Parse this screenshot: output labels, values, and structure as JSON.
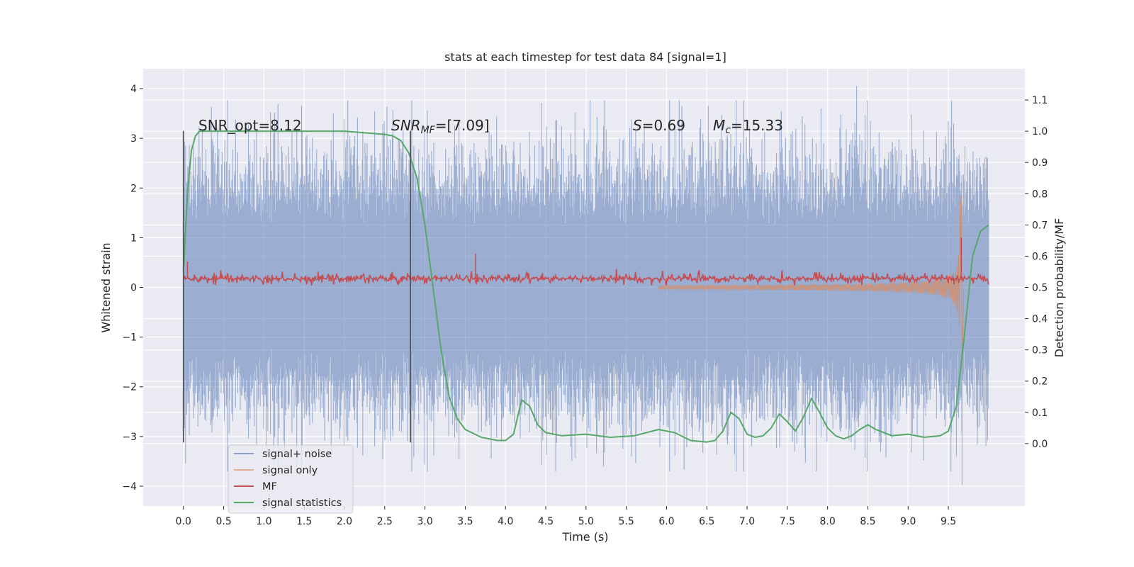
{
  "chart_data": {
    "type": "line",
    "title": "stats at each timestep for test data 84 [signal=1]",
    "xlabel": "Time (s)",
    "ylabel_left": "Whitened strain",
    "ylabel_right": "Detection probability/MF",
    "xlim": [
      -0.5,
      10.45
    ],
    "ylim_left": [
      -4.4,
      4.4
    ],
    "ylim_right": [
      -0.2,
      1.2
    ],
    "xticks": [
      0.0,
      0.5,
      1.0,
      1.5,
      2.0,
      2.5,
      3.0,
      3.5,
      4.0,
      4.5,
      5.0,
      5.5,
      6.0,
      6.5,
      7.0,
      7.5,
      8.0,
      8.5,
      9.0,
      9.5
    ],
    "xtick_labels": [
      "0.0",
      "0.5",
      "1.0",
      "1.5",
      "2.0",
      "2.5",
      "3.0",
      "3.5",
      "4.0",
      "4.5",
      "5.0",
      "5.5",
      "6.0",
      "6.5",
      "7.0",
      "7.5",
      "8.0",
      "8.5",
      "9.0",
      "9.5"
    ],
    "yticks_left": [
      -4,
      -3,
      -2,
      -1,
      0,
      1,
      2,
      3,
      4
    ],
    "yticks_left_labels": [
      "−4",
      "−3",
      "−2",
      "−1",
      "0",
      "1",
      "2",
      "3",
      "4"
    ],
    "yticks_right": [
      0.0,
      0.1,
      0.2,
      0.3,
      0.4,
      0.5,
      0.6,
      0.7,
      0.8,
      0.9,
      1.0,
      1.1
    ],
    "yticks_right_labels": [
      "0.0",
      "0.1",
      "0.2",
      "0.3",
      "0.4",
      "0.5",
      "0.6",
      "0.7",
      "0.8",
      "0.9",
      "1.0",
      "1.1"
    ],
    "grid": true,
    "legend_position": "lower-left",
    "annotations": {
      "snr_opt": "SNR_opt=8.12",
      "snr_mf_prefix": "SNR",
      "snr_mf_sub": "MF",
      "snr_mf_value": "=[7.09]",
      "s_symbol": "S",
      "s_value": "=0.69",
      "mc_symbol": "M",
      "mc_sub": "c",
      "mc_value": "=15.33"
    },
    "vlines": {
      "x": [
        0.0,
        2.82
      ],
      "ymin": -3.12,
      "ymax": 3.15,
      "color": "#555555"
    },
    "colors": {
      "plot_bg": "#eaeaf2",
      "grid": "#ffffff",
      "noise": "#4c72b0",
      "signal_only": "#dd8452",
      "mf": "#c44e52",
      "stats": "#55a868"
    },
    "noise": {
      "name": "signal+ noise",
      "x_range": [
        0.0,
        10.0
      ],
      "typical_envelope": 1.3,
      "peak_positive": 4.05,
      "peak_negative": -3.98
    },
    "signal_only": {
      "name": "signal only",
      "x_range": [
        5.9,
        9.65
      ],
      "peak_time": 9.65,
      "peak_positive": 1.85,
      "peak_negative": -1.75
    },
    "mf": {
      "name": "MF",
      "axis": "left",
      "x_range": [
        0.0,
        10.0
      ],
      "baseline": 0.18,
      "spikes": [
        {
          "x": 0.05,
          "y": 0.52
        },
        {
          "x": 3.63,
          "y": 0.68
        },
        {
          "x": 9.66,
          "y": 1.0
        }
      ]
    },
    "series": [
      {
        "name": "signal statistics",
        "axis": "right",
        "x": [
          0.0,
          0.05,
          0.1,
          0.15,
          0.2,
          0.4,
          0.7,
          1.0,
          1.5,
          2.0,
          2.5,
          2.6,
          2.7,
          2.8,
          2.9,
          3.0,
          3.1,
          3.2,
          3.3,
          3.4,
          3.5,
          3.7,
          3.9,
          4.0,
          4.1,
          4.2,
          4.3,
          4.4,
          4.5,
          4.7,
          5.0,
          5.3,
          5.6,
          5.9,
          6.1,
          6.3,
          6.5,
          6.6,
          6.7,
          6.8,
          6.9,
          7.0,
          7.1,
          7.2,
          7.3,
          7.4,
          7.5,
          7.6,
          7.7,
          7.8,
          7.9,
          8.0,
          8.1,
          8.2,
          8.3,
          8.4,
          8.5,
          8.6,
          8.7,
          8.8,
          9.0,
          9.2,
          9.4,
          9.5,
          9.6,
          9.7,
          9.8,
          9.9,
          10.0
        ],
        "y": [
          0.55,
          0.8,
          0.94,
          0.985,
          1.0,
          1.0,
          1.0,
          1.0,
          1.0,
          1.0,
          0.99,
          0.985,
          0.97,
          0.93,
          0.85,
          0.7,
          0.5,
          0.3,
          0.15,
          0.08,
          0.045,
          0.02,
          0.01,
          0.01,
          0.03,
          0.14,
          0.12,
          0.06,
          0.035,
          0.025,
          0.03,
          0.02,
          0.025,
          0.045,
          0.035,
          0.01,
          0.005,
          0.01,
          0.04,
          0.1,
          0.08,
          0.03,
          0.02,
          0.025,
          0.05,
          0.095,
          0.07,
          0.04,
          0.085,
          0.145,
          0.1,
          0.05,
          0.025,
          0.015,
          0.025,
          0.045,
          0.06,
          0.045,
          0.035,
          0.025,
          0.03,
          0.02,
          0.025,
          0.04,
          0.12,
          0.35,
          0.6,
          0.68,
          0.7
        ]
      }
    ],
    "legend": [
      {
        "label": "signal+ noise",
        "color_key": "noise"
      },
      {
        "label": "signal only",
        "color_key": "signal_only"
      },
      {
        "label": "MF",
        "color_key": "mf"
      },
      {
        "label": "signal statistics",
        "color_key": "stats"
      }
    ]
  }
}
